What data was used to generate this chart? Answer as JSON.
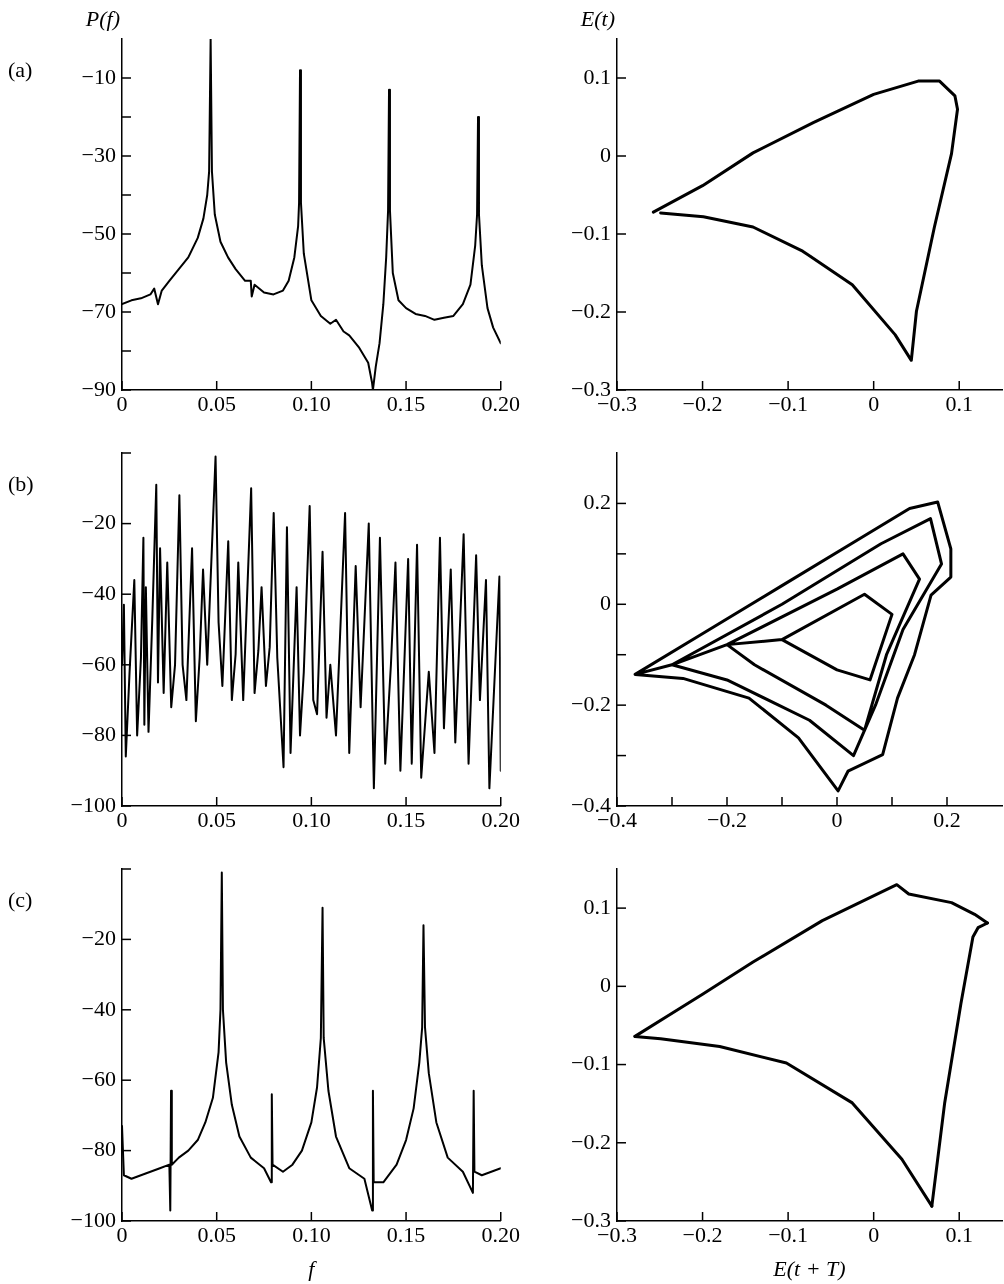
{
  "chart_data": [
    {
      "type": "line",
      "ylabel": "P(f)",
      "annotations": [
        "(a)"
      ],
      "grid": false,
      "marker": "none",
      "xlim": [
        0,
        0.2
      ],
      "xticks": [
        0,
        0.05,
        {
          "value": 0.1,
          "label": "0.10"
        },
        0.15,
        {
          "value": 0.2,
          "label": "0.20"
        }
      ],
      "ylim": [
        -90,
        0
      ],
      "yticks": [
        -90,
        {
          "value": -80,
          "label": null
        },
        -70,
        {
          "value": -60,
          "label": null
        },
        -50,
        {
          "value": -40,
          "label": null
        },
        -30,
        {
          "value": -20,
          "label": null
        },
        -10
      ],
      "series": [
        {
          "color": "#000000",
          "x": [
            0,
            0.005,
            0.01,
            0.015,
            0.017,
            0.019,
            0.021,
            0.025,
            0.03,
            0.035,
            0.04,
            0.043,
            0.045,
            0.046,
            0.0468,
            0.0475,
            0.049,
            0.052,
            0.056,
            0.06,
            0.065,
            0.068,
            0.0685,
            0.07,
            0.075,
            0.08,
            0.085,
            0.088,
            0.091,
            0.093,
            0.0935,
            0.094,
            0.0945,
            0.096,
            0.1,
            0.105,
            0.11,
            0.113,
            0.117,
            0.12,
            0.125,
            0.13,
            0.132,
            0.1325,
            0.134,
            0.136,
            0.138,
            0.1395,
            0.1405,
            0.141,
            0.1415,
            0.143,
            0.146,
            0.15,
            0.155,
            0.16,
            0.165,
            0.17,
            0.175,
            0.18,
            0.184,
            0.1865,
            0.1875,
            0.188,
            0.1885,
            0.19,
            0.193,
            0.196,
            0.2
          ],
          "values": [
            -68,
            -67,
            -66.5,
            -65.5,
            -64,
            -68,
            -64.5,
            -62,
            -59,
            -56,
            -51,
            -46,
            -40,
            -34,
            0,
            -34,
            -45,
            -52,
            -56,
            -59,
            -62,
            -62,
            -66,
            -63,
            -65,
            -65.5,
            -64.5,
            -62,
            -56,
            -48,
            -42,
            -8,
            -42,
            -55,
            -67,
            -71,
            -73,
            -72,
            -75,
            -76,
            -79,
            -83,
            -88,
            -90,
            -84,
            -78,
            -68,
            -56,
            -44,
            -13,
            -44,
            -60,
            -67,
            -69,
            -70.5,
            -71,
            -72,
            -71.5,
            -71,
            -68,
            -63,
            -53,
            -45,
            -20,
            -45,
            -58,
            -69,
            -74,
            -78
          ]
        }
      ]
    },
    {
      "type": "line",
      "ylabel": "E(t)",
      "grid": false,
      "marker": "none",
      "xlim": [
        -0.3,
        0.15
      ],
      "xticks": [
        -0.3,
        -0.2,
        -0.1,
        0,
        0.1
      ],
      "ylim": [
        -0.3,
        0.15
      ],
      "yticks": [
        -0.3,
        -0.2,
        -0.1,
        0,
        0.1
      ],
      "series": [
        {
          "color": "#000000",
          "x": [
            -0.2575,
            -0.2,
            -0.141,
            -0.07,
            0,
            0.052,
            0.077,
            0.095,
            0.098,
            0.091,
            0.071,
            0.05,
            0.044,
            0.025,
            -0.025,
            -0.083,
            -0.141,
            -0.199,
            -0.249
          ],
          "values": [
            -0.072,
            -0.038,
            0.004,
            0.043,
            0.079,
            0.096,
            0.096,
            0.077,
            0.06,
            0.003,
            -0.091,
            -0.199,
            -0.262,
            -0.229,
            -0.165,
            -0.122,
            -0.091,
            -0.078,
            -0.073
          ]
        }
      ]
    },
    {
      "type": "line",
      "annotations": [
        "(b)"
      ],
      "grid": false,
      "marker": "none",
      "xlim": [
        0,
        0.2
      ],
      "xticks": [
        0,
        0.05,
        {
          "value": 0.1,
          "label": "0.10"
        },
        0.15,
        {
          "value": 0.2,
          "label": "0.20"
        }
      ],
      "ylim": [
        -100,
        0
      ],
      "yticks": [
        -100,
        -80,
        -60,
        -40,
        -20,
        {
          "value": 0,
          "label": null
        }
      ],
      "series": [
        {
          "color": "#000000",
          "x": [
            0,
            0.001,
            0.002,
            0.004,
            0.0065,
            0.008,
            0.01,
            0.0113,
            0.0118,
            0.0126,
            0.014,
            0.016,
            0.0181,
            0.019,
            0.0201,
            0.022,
            0.0239,
            0.026,
            0.028,
            0.0303,
            0.032,
            0.034,
            0.037,
            0.039,
            0.041,
            0.0428,
            0.045,
            0.0494,
            0.051,
            0.053,
            0.0561,
            0.058,
            0.06,
            0.0614,
            0.064,
            0.0682,
            0.07,
            0.072,
            0.0737,
            0.076,
            0.078,
            0.0801,
            0.082,
            0.0853,
            0.0871,
            0.089,
            0.0922,
            0.094,
            0.096,
            0.0991,
            0.101,
            0.103,
            0.1059,
            0.108,
            0.11,
            0.113,
            0.1178,
            0.12,
            0.1234,
            0.126,
            0.1303,
            0.133,
            0.1362,
            0.139,
            0.142,
            0.1444,
            0.147,
            0.1511,
            0.153,
            0.1558,
            0.158,
            0.162,
            0.165,
            0.1679,
            0.17,
            0.1736,
            0.176,
            0.1804,
            0.183,
            0.187,
            0.189,
            0.1922,
            0.194,
            0.1993,
            0.2
          ],
          "values": [
            -60,
            -43,
            -86,
            -62,
            -36,
            -80,
            -58,
            -24,
            -77,
            -38,
            -79,
            -47,
            -9,
            -65,
            -27,
            -68,
            -31,
            -72,
            -60,
            -12,
            -60,
            -70,
            -27,
            -76,
            -58,
            -33,
            -60,
            -1,
            -48,
            -66,
            -25,
            -70,
            -57,
            -31,
            -70,
            -10,
            -68,
            -56,
            -38,
            -66,
            -55,
            -17,
            -58,
            -89,
            -21,
            -85,
            -38,
            -80,
            -62,
            -15,
            -70,
            -74,
            -28,
            -75,
            -60,
            -80,
            -17,
            -85,
            -32,
            -72,
            -20,
            -95,
            -24,
            -88,
            -60,
            -31,
            -90,
            -30,
            -88,
            -26,
            -92,
            -62,
            -85,
            -24,
            -78,
            -33,
            -82,
            -23,
            -88,
            -29,
            -70,
            -36,
            -95,
            -35,
            -90
          ]
        }
      ]
    },
    {
      "type": "line",
      "grid": false,
      "marker": "none",
      "xlim": [
        -0.4,
        0.3
      ],
      "xticks": [
        -0.4,
        {
          "value": -0.3,
          "label": null
        },
        -0.2,
        {
          "value": -0.1,
          "label": null
        },
        0,
        {
          "value": 0.1,
          "label": null
        },
        0.2
      ],
      "ylim": [
        -0.4,
        0.3
      ],
      "yticks": [
        -0.4,
        {
          "value": -0.3,
          "label": null
        },
        -0.2,
        {
          "value": -0.1,
          "label": null
        },
        0,
        {
          "value": 0.1,
          "label": null
        },
        0.2
      ],
      "series": [
        {
          "color": "#000000",
          "x": [
            -0.367,
            -0.25,
            -0.1,
            0.05,
            0.132,
            0.183,
            0.207,
            0.207,
            0.171,
            0.141,
            0.11,
            0.083,
            0.02,
            0.002,
            -0.07,
            -0.16,
            -0.28,
            -0.367,
            -0.3,
            -0.1,
            0.08,
            0.17,
            0.19,
            0.12,
            0.07,
            0.03,
            -0.05,
            -0.2,
            -0.3,
            -0.2,
            0,
            0.12,
            0.15,
            0.09,
            0.05,
            -0.02,
            -0.15,
            -0.2,
            -0.1,
            0.05,
            0.1,
            0.06,
            0,
            -0.1
          ],
          "values": [
            -0.139,
            -0.062,
            0.037,
            0.136,
            0.19,
            0.203,
            0.11,
            0.054,
            0.018,
            -0.1,
            -0.186,
            -0.298,
            -0.331,
            -0.37,
            -0.265,
            -0.186,
            -0.147,
            -0.139,
            -0.12,
            0,
            0.12,
            0.17,
            0.08,
            -0.05,
            -0.2,
            -0.3,
            -0.23,
            -0.15,
            -0.12,
            -0.08,
            0.03,
            0.1,
            0.05,
            -0.1,
            -0.25,
            -0.2,
            -0.12,
            -0.08,
            -0.07,
            0.02,
            -0.02,
            -0.15,
            -0.13,
            -0.07
          ]
        }
      ]
    },
    {
      "type": "line",
      "xlabel": "f",
      "annotations": [
        "(c)"
      ],
      "grid": false,
      "marker": "none",
      "xlim": [
        0,
        0.2
      ],
      "xticks": [
        0,
        0.05,
        {
          "value": 0.1,
          "label": "0.10"
        },
        0.15,
        {
          "value": 0.2,
          "label": "0.20"
        }
      ],
      "ylim": [
        -100,
        0
      ],
      "yticks": [
        -100,
        -80,
        -60,
        -40,
        -20,
        {
          "value": 0,
          "label": null
        }
      ],
      "series": [
        {
          "color": "#000000",
          "x": [
            0,
            0.001,
            0.005,
            0.01,
            0.015,
            0.02,
            0.025,
            0.0255,
            0.0259,
            0.0263,
            0.03,
            0.035,
            0.04,
            0.044,
            0.048,
            0.051,
            0.052,
            0.0527,
            0.0533,
            0.055,
            0.058,
            0.062,
            0.068,
            0.075,
            0.0787,
            0.0791,
            0.0795,
            0.085,
            0.09,
            0.095,
            0.1,
            0.103,
            0.105,
            0.1059,
            0.1065,
            0.109,
            0.113,
            0.12,
            0.128,
            0.1321,
            0.1325,
            0.1329,
            0.138,
            0.145,
            0.15,
            0.154,
            0.157,
            0.1585,
            0.1592,
            0.16,
            0.162,
            0.166,
            0.172,
            0.18,
            0.1853,
            0.1857,
            0.1861,
            0.19,
            0.195,
            0.2
          ],
          "values": [
            -73,
            -87,
            -88,
            -87,
            -86,
            -85,
            -84,
            -97,
            -63,
            -84,
            -82,
            -80,
            -77,
            -72,
            -65,
            -52,
            -40,
            -1,
            -40,
            -55,
            -67,
            -76,
            -82,
            -85,
            -89,
            -64,
            -84,
            -86,
            -84,
            -80,
            -72,
            -62,
            -48,
            -11,
            -48,
            -63,
            -76,
            -85,
            -88,
            -97,
            -63,
            -89,
            -89,
            -84,
            -77,
            -68,
            -55,
            -45,
            -16,
            -45,
            -58,
            -72,
            -82,
            -86,
            -92,
            -63,
            -86,
            -87,
            -86,
            -85
          ]
        }
      ]
    },
    {
      "type": "line",
      "xlabel": "E(t + T)",
      "grid": false,
      "marker": "none",
      "xlim": [
        -0.3,
        0.15
      ],
      "xticks": [
        -0.3,
        -0.2,
        -0.1,
        0,
        0.1
      ],
      "ylim": [
        -0.3,
        0.15
      ],
      "yticks": [
        -0.3,
        -0.2,
        -0.1,
        0,
        0.1
      ],
      "series": [
        {
          "color": "#000000",
          "x": [
            -0.279,
            -0.2,
            -0.141,
            -0.06,
            0.027,
            0.041,
            0.091,
            0.118,
            0.133
          ],
          "values": [
            -0.064,
            -0.01,
            0.031,
            0.084,
            0.13,
            0.118,
            0.107,
            0.092,
            0.081
          ]
        },
        {
          "color": "#000000",
          "x": [
            0.133,
            0.122,
            0.116,
            0.102,
            0.083,
            0.068
          ],
          "values": [
            0.081,
            0.075,
            0.063,
            -0.022,
            -0.149,
            -0.281
          ]
        },
        {
          "color": "#000000",
          "x": [
            0.068,
            0.033,
            -0.025,
            -0.102,
            -0.18,
            -0.249,
            -0.279
          ],
          "values": [
            -0.281,
            -0.221,
            -0.149,
            -0.098,
            -0.077,
            -0.067,
            -0.064
          ]
        }
      ]
    }
  ]
}
